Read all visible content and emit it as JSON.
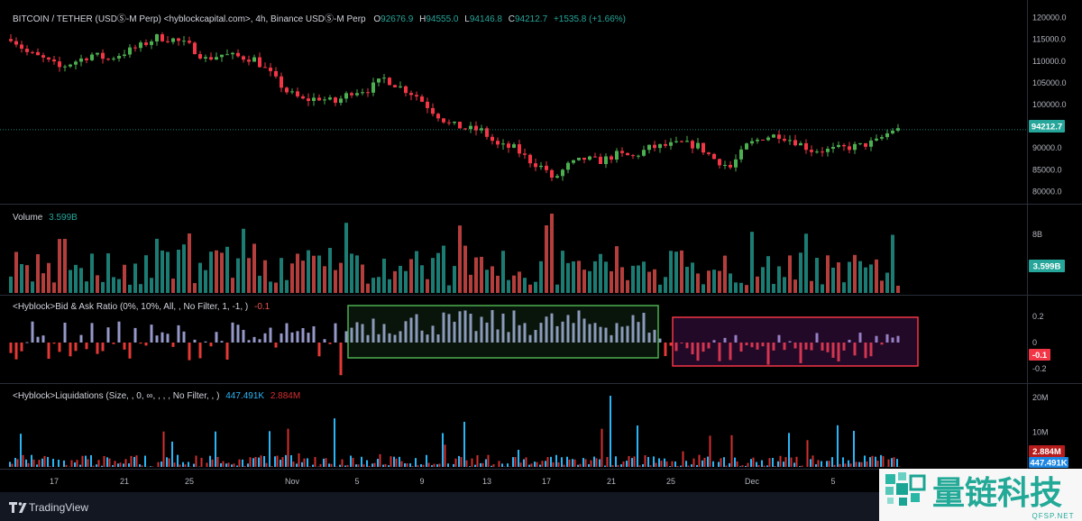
{
  "price_pane": {
    "title": "BITCOIN / TETHER (USDⓈ-M Perp) <hyblockcapital.com>, 4h, Binance USDⓈ-M Perp",
    "o_label": "O",
    "o_value": "92676.9",
    "h_label": "H",
    "h_value": "94555.0",
    "l_label": "L",
    "l_value": "94146.8",
    "c_label": "C",
    "c_value": "94212.7",
    "change": "+1535.8 (+1.66%)",
    "last_price": "94212.7"
  },
  "volume_pane": {
    "label": "Volume",
    "value": "3.599B"
  },
  "bid_ask_pane": {
    "label": "<Hyblock>Bid & Ask Ratio (0%, 10%, All, , No Filter, 1, -1, )",
    "value": "-0.1",
    "badge": "-0.1"
  },
  "liq_pane": {
    "label": "<Hyblock>Liquidations (Size, , 0, ∞, , , , No Filter, , )",
    "value_long": "447.491K",
    "value_short": "2.884M",
    "badge_short": "2.884M",
    "badge_long": "447.491K"
  },
  "x_axis": {
    "ticks": [
      "17",
      "21",
      "25",
      "Nov",
      "5",
      "9",
      "13",
      "17",
      "21",
      "25",
      "Dec",
      "5"
    ]
  },
  "footer": {
    "brand": "TradingView"
  },
  "watermark": {
    "text": "量链科技",
    "sub": "QFSP.NET"
  },
  "colors": {
    "up": "#26a69a",
    "down": "#ef5350",
    "green_candle": "#4caf50",
    "red_candle": "#f23645",
    "bid": "#9598c9",
    "liq_long": "#29b6f6",
    "liq_short": "#d32f2f"
  },
  "chart_data": [
    {
      "type": "candlestick",
      "title": "BITCOIN / TETHER (USDⓈ-M Perp), 4h",
      "x": [
        "17",
        "21",
        "25",
        "Nov",
        "5",
        "9",
        "13",
        "17",
        "21",
        "25",
        "Dec",
        "5"
      ],
      "y_ticks": [
        120000,
        115000,
        110000,
        105000,
        100000,
        95000,
        90000,
        85000,
        80000
      ],
      "ylim": [
        78000,
        122000
      ],
      "close_path": [
        [
          0,
          115500
        ],
        [
          3,
          112000
        ],
        [
          6,
          110500
        ],
        [
          9,
          108500
        ],
        [
          12,
          110000
        ],
        [
          15,
          111500
        ],
        [
          18,
          110500
        ],
        [
          21,
          112000
        ],
        [
          24,
          113500
        ],
        [
          27,
          115500
        ],
        [
          30,
          115000
        ],
        [
          33,
          113500
        ],
        [
          36,
          110500
        ],
        [
          39,
          111500
        ],
        [
          42,
          111000
        ],
        [
          45,
          110500
        ],
        [
          48,
          107000
        ],
        [
          51,
          103000
        ],
        [
          54,
          101000
        ],
        [
          57,
          101500
        ],
        [
          60,
          100500
        ],
        [
          63,
          103000
        ],
        [
          66,
          103500
        ],
        [
          69,
          106000
        ],
        [
          72,
          104000
        ],
        [
          75,
          102000
        ],
        [
          78,
          98500
        ],
        [
          81,
          95500
        ],
        [
          84,
          94500
        ],
        [
          87,
          94000
        ],
        [
          90,
          90500
        ],
        [
          93,
          90000
        ],
        [
          96,
          87000
        ],
        [
          99,
          85000
        ],
        [
          100,
          82500
        ],
        [
          103,
          86000
        ],
        [
          106,
          87500
        ],
        [
          109,
          87000
        ],
        [
          112,
          88500
        ],
        [
          115,
          88000
        ],
        [
          118,
          90000
        ],
        [
          121,
          90500
        ],
        [
          124,
          91000
        ],
        [
          127,
          90500
        ],
        [
          130,
          87500
        ],
        [
          133,
          85500
        ],
        [
          136,
          90500
        ],
        [
          139,
          92500
        ],
        [
          142,
          93000
        ],
        [
          145,
          91500
        ],
        [
          148,
          89500
        ],
        [
          151,
          89500
        ],
        [
          154,
          90000
        ],
        [
          157,
          90500
        ],
        [
          160,
          91500
        ],
        [
          163,
          94200
        ]
      ],
      "last": 94212.7
    },
    {
      "type": "bar",
      "title": "Volume",
      "y_ticks": [
        "8B"
      ],
      "last": "3.599B"
    },
    {
      "type": "bar",
      "title": "<Hyblock>Bid & Ask Ratio",
      "y_ticks": [
        0.2,
        0,
        -0.2
      ],
      "ylim": [
        -0.28,
        0.28
      ],
      "annotations": [
        {
          "type": "box",
          "from_index": 63,
          "to_index": 119,
          "color": "#4caf50"
        },
        {
          "type": "box",
          "from_index": 123,
          "to_index": 167,
          "color": "#f23645"
        }
      ],
      "last": -0.1
    },
    {
      "type": "bar",
      "title": "<Hyblock>Liquidations",
      "y_ticks": [
        "20M",
        "10M"
      ],
      "series": [
        {
          "name": "447.491K"
        },
        {
          "name": "2.884M"
        }
      ]
    }
  ]
}
